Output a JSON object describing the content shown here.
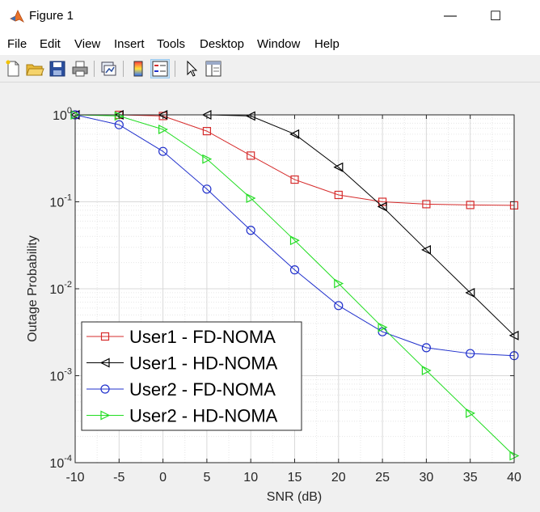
{
  "window": {
    "title": "Figure 1",
    "minimize_glyph": "—",
    "maximize_glyph": "☐",
    "app_icon": "matlab-logo-icon"
  },
  "menu": [
    "File",
    "Edit",
    "View",
    "Insert",
    "Tools",
    "Desktop",
    "Window",
    "Help"
  ],
  "toolbar": {
    "tools": [
      "new-figure-icon",
      "open-file-icon",
      "save-icon",
      "print-icon",
      "link-plot-icon",
      "colorbar-icon",
      "legend-icon",
      "pointer-icon",
      "property-inspector-icon"
    ],
    "active_tool": "legend-icon"
  },
  "colors": {
    "user1_fd": "#d62b2b",
    "user1_hd": "#000000",
    "user2_fd": "#1f2fcc",
    "user2_hd": "#22dd22"
  },
  "chart_data": {
    "type": "line",
    "xlabel": "SNR (dB)",
    "ylabel": "Outage Probability",
    "yscale": "log",
    "xlim": [
      -10,
      40
    ],
    "ylim": [
      0.0001,
      1
    ],
    "xticks": [
      "-10",
      "-5",
      "0",
      "5",
      "10",
      "15",
      "20",
      "25",
      "30",
      "35",
      "40"
    ],
    "yticks": [
      {
        "value": 1,
        "base": "10",
        "exp": "0"
      },
      {
        "value": 0.1,
        "base": "10",
        "exp": "-1"
      },
      {
        "value": 0.01,
        "base": "10",
        "exp": "-2"
      },
      {
        "value": 0.001,
        "base": "10",
        "exp": "-3"
      },
      {
        "value": 0.0001,
        "base": "10",
        "exp": "-4"
      }
    ],
    "grid": true,
    "minor_grid": true,
    "legend_position": "bottom-left",
    "x": [
      -10,
      -5,
      0,
      5,
      10,
      15,
      20,
      25,
      30,
      35,
      40
    ],
    "series": [
      {
        "name": "User1 - FD-NOMA",
        "marker": "square",
        "color": "#d62b2b",
        "values": [
          1.0,
          1.0,
          0.97,
          0.65,
          0.34,
          0.18,
          0.12,
          0.1,
          0.094,
          0.092,
          0.091
        ]
      },
      {
        "name": "User1 - HD-NOMA",
        "marker": "triangle-left",
        "color": "#000000",
        "values": [
          1.0,
          1.0,
          1.0,
          1.0,
          0.97,
          0.6,
          0.25,
          0.088,
          0.028,
          0.009,
          0.0029
        ]
      },
      {
        "name": "User2 - FD-NOMA",
        "marker": "circle",
        "color": "#1f2fcc",
        "values": [
          1.0,
          0.77,
          0.38,
          0.14,
          0.047,
          0.0165,
          0.0064,
          0.0032,
          0.0021,
          0.0018,
          0.0017
        ]
      },
      {
        "name": "User2 - HD-NOMA",
        "marker": "triangle-right",
        "color": "#22dd22",
        "values": [
          1.0,
          0.97,
          0.68,
          0.31,
          0.11,
          0.036,
          0.0115,
          0.0036,
          0.00115,
          0.00037,
          0.00012
        ]
      }
    ]
  }
}
